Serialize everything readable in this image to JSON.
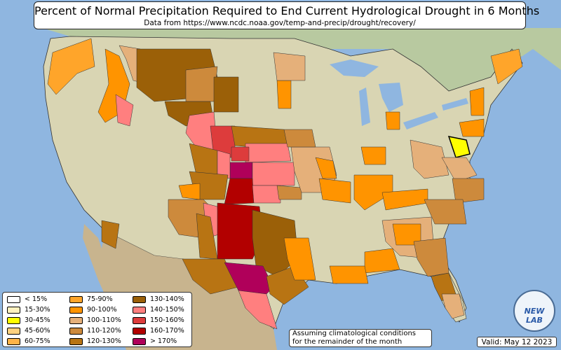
{
  "title": "Percent of Normal Precipitation Required to End Current Hydrological Drought in 6 Months",
  "subtitle": "Data from https://www.ncdc.noaa.gov/temp-and-precip/drought/recovery/",
  "legend": [
    {
      "label": "< 15%",
      "color": "#ffffff"
    },
    {
      "label": "15-30%",
      "color": "#fff2c0"
    },
    {
      "label": "30-45%",
      "color": "#ffff00"
    },
    {
      "label": "45-60%",
      "color": "#ffd27f"
    },
    {
      "label": "60-75%",
      "color": "#ffb347"
    },
    {
      "label": "75-90%",
      "color": "#ffa52a"
    },
    {
      "label": "90-100%",
      "color": "#ff9400"
    },
    {
      "label": "100-110%",
      "color": "#e5b07a"
    },
    {
      "label": "110-120%",
      "color": "#cd8a3c"
    },
    {
      "label": "120-130%",
      "color": "#b87413"
    },
    {
      "label": "130-140%",
      "color": "#9b6008"
    },
    {
      "label": "140-150%",
      "color": "#ff7f7f"
    },
    {
      "label": "150-160%",
      "color": "#dd3c3c"
    },
    {
      "label": "160-170%",
      "color": "#b20000"
    },
    {
      "label": "> 170%",
      "color": "#b0005a"
    }
  ],
  "note": {
    "line1": "Assuming climatological conditions",
    "line2": "for the remainder of the month"
  },
  "valid": "Valid: May 12 2023",
  "logo": "NEW LAB",
  "colors": {
    "ocean": "#8fb6e0",
    "land": "#d9d5b3",
    "canada": "#b8c9a0",
    "mexico": "#c8b48e"
  }
}
